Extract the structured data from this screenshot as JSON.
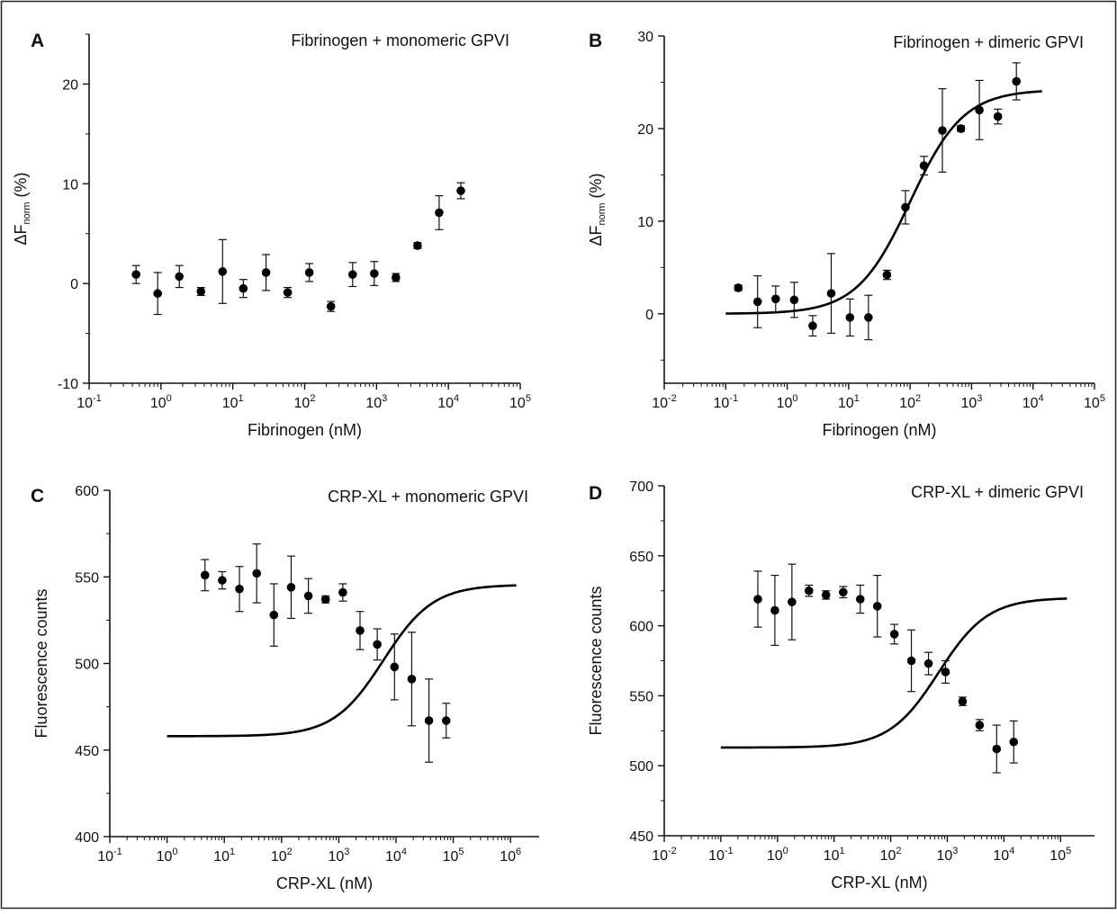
{
  "chart_data": [
    {
      "panel_label": "A",
      "type": "scatter",
      "title": "Fibrinogen + monomeric GPVI",
      "xlabel": "Fibrinogen (nM)",
      "ylabel_main": "ΔF",
      "ylabel_sub": "norm",
      "ylabel_unit": " (%)",
      "xscale": "log",
      "xlim_exp": [
        -1,
        5
      ],
      "ylim": [
        -10,
        25
      ],
      "xticks_exp": [
        -1,
        0,
        1,
        2,
        3,
        4,
        5
      ],
      "yticks": [
        -10,
        0,
        10,
        20
      ],
      "points": [
        {
          "x": 0.45,
          "y": 0.9,
          "err": 0.9
        },
        {
          "x": 0.9,
          "y": -1.0,
          "err": 2.1
        },
        {
          "x": 1.8,
          "y": 0.7,
          "err": 1.1
        },
        {
          "x": 3.6,
          "y": -0.8,
          "err": 0.4
        },
        {
          "x": 7.2,
          "y": 1.2,
          "err": 3.2
        },
        {
          "x": 14,
          "y": -0.5,
          "err": 0.9
        },
        {
          "x": 29,
          "y": 1.1,
          "err": 1.8
        },
        {
          "x": 58,
          "y": -0.9,
          "err": 0.5
        },
        {
          "x": 116,
          "y": 1.1,
          "err": 0.9
        },
        {
          "x": 232,
          "y": -2.3,
          "err": 0.5
        },
        {
          "x": 465,
          "y": 0.9,
          "err": 1.2
        },
        {
          "x": 930,
          "y": 1.0,
          "err": 1.2
        },
        {
          "x": 1860,
          "y": 0.6,
          "err": 0.4
        },
        {
          "x": 3720,
          "y": 3.8,
          "err": 0.3
        },
        {
          "x": 7440,
          "y": 7.1,
          "err": 1.7
        },
        {
          "x": 14900,
          "y": 9.3,
          "err": 0.8
        }
      ],
      "fit": null
    },
    {
      "panel_label": "B",
      "type": "scatter",
      "title": "Fibrinogen + dimeric GPVI",
      "xlabel": "Fibrinogen (nM)",
      "ylabel_main": "ΔF",
      "ylabel_sub": "norm",
      "ylabel_unit": " (%)",
      "xscale": "log",
      "xlim_exp": [
        -2,
        5
      ],
      "ylim": [
        -7.5,
        30
      ],
      "xticks_exp": [
        -2,
        -1,
        0,
        1,
        2,
        3,
        4,
        5
      ],
      "yticks": [
        0,
        10,
        20,
        30
      ],
      "points": [
        {
          "x": 0.16,
          "y": 2.8,
          "err": 0.3
        },
        {
          "x": 0.33,
          "y": 1.3,
          "err": 2.8
        },
        {
          "x": 0.65,
          "y": 1.6,
          "err": 1.4
        },
        {
          "x": 1.3,
          "y": 1.5,
          "err": 1.9
        },
        {
          "x": 2.6,
          "y": -1.3,
          "err": 1.1
        },
        {
          "x": 5.2,
          "y": 2.2,
          "err": 4.3
        },
        {
          "x": 10.5,
          "y": -0.4,
          "err": 2.0
        },
        {
          "x": 21,
          "y": -0.4,
          "err": 2.4
        },
        {
          "x": 42,
          "y": 4.2,
          "err": 0.5
        },
        {
          "x": 84,
          "y": 11.5,
          "err": 1.8
        },
        {
          "x": 168,
          "y": 16.0,
          "err": 1.0
        },
        {
          "x": 335,
          "y": 19.8,
          "err": 4.5
        },
        {
          "x": 670,
          "y": 20.0,
          "err": 0.3
        },
        {
          "x": 1340,
          "y": 22.0,
          "err": 3.2
        },
        {
          "x": 2680,
          "y": 21.3,
          "err": 0.8
        },
        {
          "x": 5360,
          "y": 25.1,
          "err": 2.0
        }
      ],
      "fit": {
        "xmin": 0.1,
        "xmax": 14000,
        "bottom": 0,
        "top": 24.2,
        "ec50": 100,
        "hill": 1
      }
    },
    {
      "panel_label": "C",
      "type": "scatter",
      "title": "CRP-XL + monomeric GPVI",
      "xlabel": "CRP-XL (nM)",
      "ylabel_main": "Fluorescence counts",
      "ylabel_sub": "",
      "ylabel_unit": "",
      "xscale": "log",
      "xlim_exp": [
        -1,
        6.5
      ],
      "ylim": [
        400,
        600
      ],
      "xticks_exp": [
        -1,
        0,
        1,
        2,
        3,
        4,
        5,
        6
      ],
      "yticks": [
        400,
        450,
        500,
        550,
        600
      ],
      "points": [
        {
          "x": 4.6,
          "y": 551,
          "err": 9
        },
        {
          "x": 9.2,
          "y": 548,
          "err": 5
        },
        {
          "x": 18.4,
          "y": 543,
          "err": 13
        },
        {
          "x": 36.8,
          "y": 552,
          "err": 17
        },
        {
          "x": 73.5,
          "y": 528,
          "err": 18
        },
        {
          "x": 147,
          "y": 544,
          "err": 18
        },
        {
          "x": 294,
          "y": 539,
          "err": 10
        },
        {
          "x": 588,
          "y": 537,
          "err": 2
        },
        {
          "x": 1176,
          "y": 541,
          "err": 5
        },
        {
          "x": 2350,
          "y": 519,
          "err": 11
        },
        {
          "x": 4700,
          "y": 511,
          "err": 9
        },
        {
          "x": 9400,
          "y": 498,
          "err": 19
        },
        {
          "x": 18800,
          "y": 491,
          "err": 27
        },
        {
          "x": 37600,
          "y": 467,
          "err": 24
        },
        {
          "x": 75200,
          "y": 467,
          "err": 10
        }
      ],
      "fit": {
        "xmin": 1,
        "xmax": 1260000,
        "bottom": 458,
        "top": 545.5,
        "ec50": 6000,
        "hill": 1
      }
    },
    {
      "panel_label": "D",
      "type": "scatter",
      "title": "CRP-XL + dimeric GPVI",
      "xlabel": "CRP-XL (nM)",
      "ylabel_main": "Fluorescence counts",
      "ylabel_sub": "",
      "ylabel_unit": "",
      "xscale": "log",
      "xlim_exp": [
        -2,
        5.6
      ],
      "ylim": [
        450,
        700
      ],
      "xticks_exp": [
        -2,
        -1,
        0,
        1,
        2,
        3,
        4,
        5
      ],
      "yticks": [
        450,
        500,
        550,
        600,
        650,
        700
      ],
      "points": [
        {
          "x": 0.45,
          "y": 619,
          "err": 20
        },
        {
          "x": 0.9,
          "y": 611,
          "err": 25
        },
        {
          "x": 1.8,
          "y": 617,
          "err": 27
        },
        {
          "x": 3.6,
          "y": 625,
          "err": 4
        },
        {
          "x": 7.2,
          "y": 622,
          "err": 3
        },
        {
          "x": 14.5,
          "y": 624,
          "err": 4
        },
        {
          "x": 29,
          "y": 619,
          "err": 10
        },
        {
          "x": 58,
          "y": 614,
          "err": 22
        },
        {
          "x": 116,
          "y": 594,
          "err": 7
        },
        {
          "x": 232,
          "y": 575,
          "err": 22
        },
        {
          "x": 465,
          "y": 573,
          "err": 8
        },
        {
          "x": 930,
          "y": 567,
          "err": 8
        },
        {
          "x": 1860,
          "y": 546,
          "err": 3
        },
        {
          "x": 3720,
          "y": 529,
          "err": 4
        },
        {
          "x": 7440,
          "y": 512,
          "err": 17
        },
        {
          "x": 14900,
          "y": 517,
          "err": 15
        }
      ],
      "fit": {
        "xmin": 0.1,
        "xmax": 130000,
        "bottom": 513,
        "top": 620,
        "ec50": 700,
        "hill": 1
      }
    }
  ]
}
